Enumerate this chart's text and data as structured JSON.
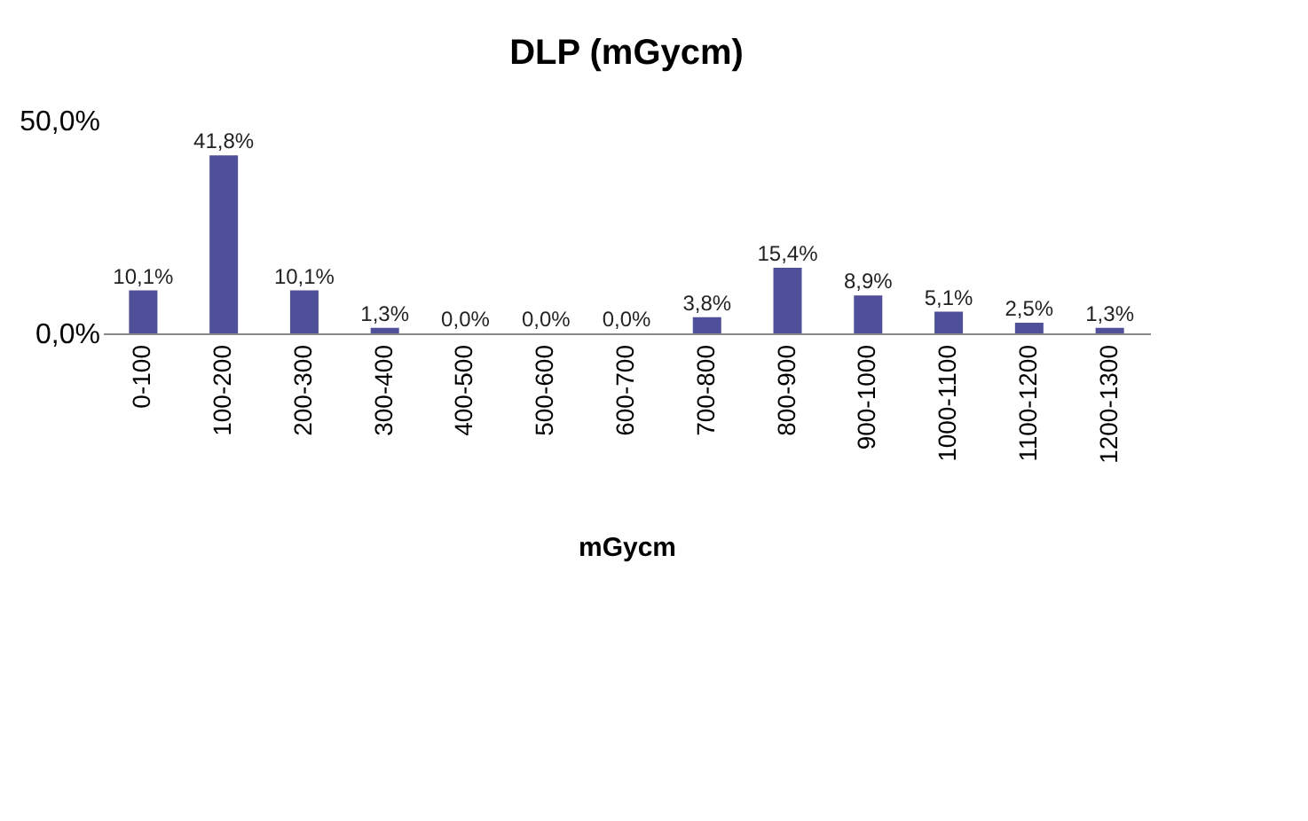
{
  "chart_data": {
    "type": "bar",
    "title": "DLP (mGycm)",
    "xlabel": "mGycm",
    "categories": [
      "0-100",
      "100-200",
      "200-300",
      "300-400",
      "400-500",
      "500-600",
      "600-700",
      "700-800",
      "800-900",
      "900-1000",
      "1000-1100",
      "1100-1200",
      "1200-1300"
    ],
    "values": [
      10.1,
      41.8,
      10.1,
      1.3,
      0.0,
      0.0,
      0.0,
      3.8,
      15.4,
      8.9,
      5.1,
      2.5,
      1.3
    ],
    "value_labels": [
      "10,1%",
      "41,8%",
      "10,1%",
      "1,3%",
      "0,0%",
      "0,0%",
      "0,0%",
      "3,8%",
      "15,4%",
      "8,9%",
      "5,1%",
      "2,5%",
      "1,3%"
    ],
    "color": "#4f4f9a",
    "ylim": [
      0,
      50
    ],
    "yticks": [
      {
        "value": 0,
        "label": "0,0%"
      },
      {
        "value": 50,
        "label": "50,0%"
      }
    ]
  }
}
